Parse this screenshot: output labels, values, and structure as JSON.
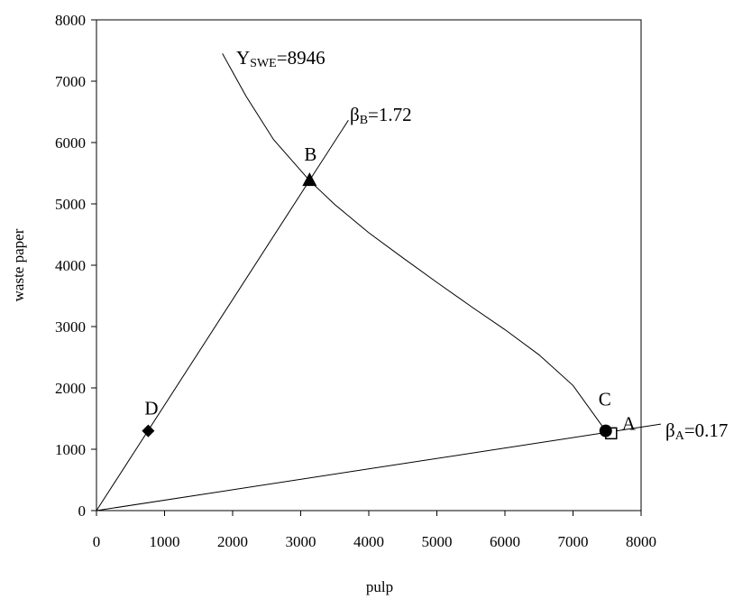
{
  "chart_data": {
    "type": "scatter",
    "title": "",
    "xlabel": "pulp",
    "ylabel": "waste paper",
    "xlim": [
      0,
      8000
    ],
    "ylim": [
      0,
      8000
    ],
    "xticks": [
      0,
      1000,
      2000,
      3000,
      4000,
      5000,
      6000,
      7000,
      8000
    ],
    "yticks": [
      0,
      1000,
      2000,
      3000,
      4000,
      5000,
      6000,
      7000,
      8000
    ],
    "grid": false,
    "points": [
      {
        "label": "A",
        "x": 7560,
        "y": 1260,
        "marker": "square-open"
      },
      {
        "label": "B",
        "x": 3130,
        "y": 5380,
        "marker": "triangle"
      },
      {
        "label": "C",
        "x": 7480,
        "y": 1300,
        "marker": "circle"
      },
      {
        "label": "D",
        "x": 760,
        "y": 1300,
        "marker": "diamond"
      }
    ],
    "rays": [
      {
        "label_main": "β",
        "label_sub": "B",
        "label_rest": "=1.72",
        "slope": 1.72,
        "x_end": 3700
      },
      {
        "label_main": "β",
        "label_sub": "A",
        "label_rest": "=0.17",
        "slope": 0.17,
        "x_end": 8290
      }
    ],
    "curve": {
      "label_main": "Y",
      "label_sub": "SWE",
      "label_rest": "=8946",
      "x": [
        1850,
        2200,
        2600,
        3130,
        3500,
        4000,
        4500,
        5000,
        5500,
        6000,
        6500,
        7000,
        7480
      ],
      "y": [
        7450,
        6750,
        6050,
        5380,
        4990,
        4530,
        4120,
        3720,
        3330,
        2950,
        2540,
        2040,
        1300
      ]
    }
  }
}
